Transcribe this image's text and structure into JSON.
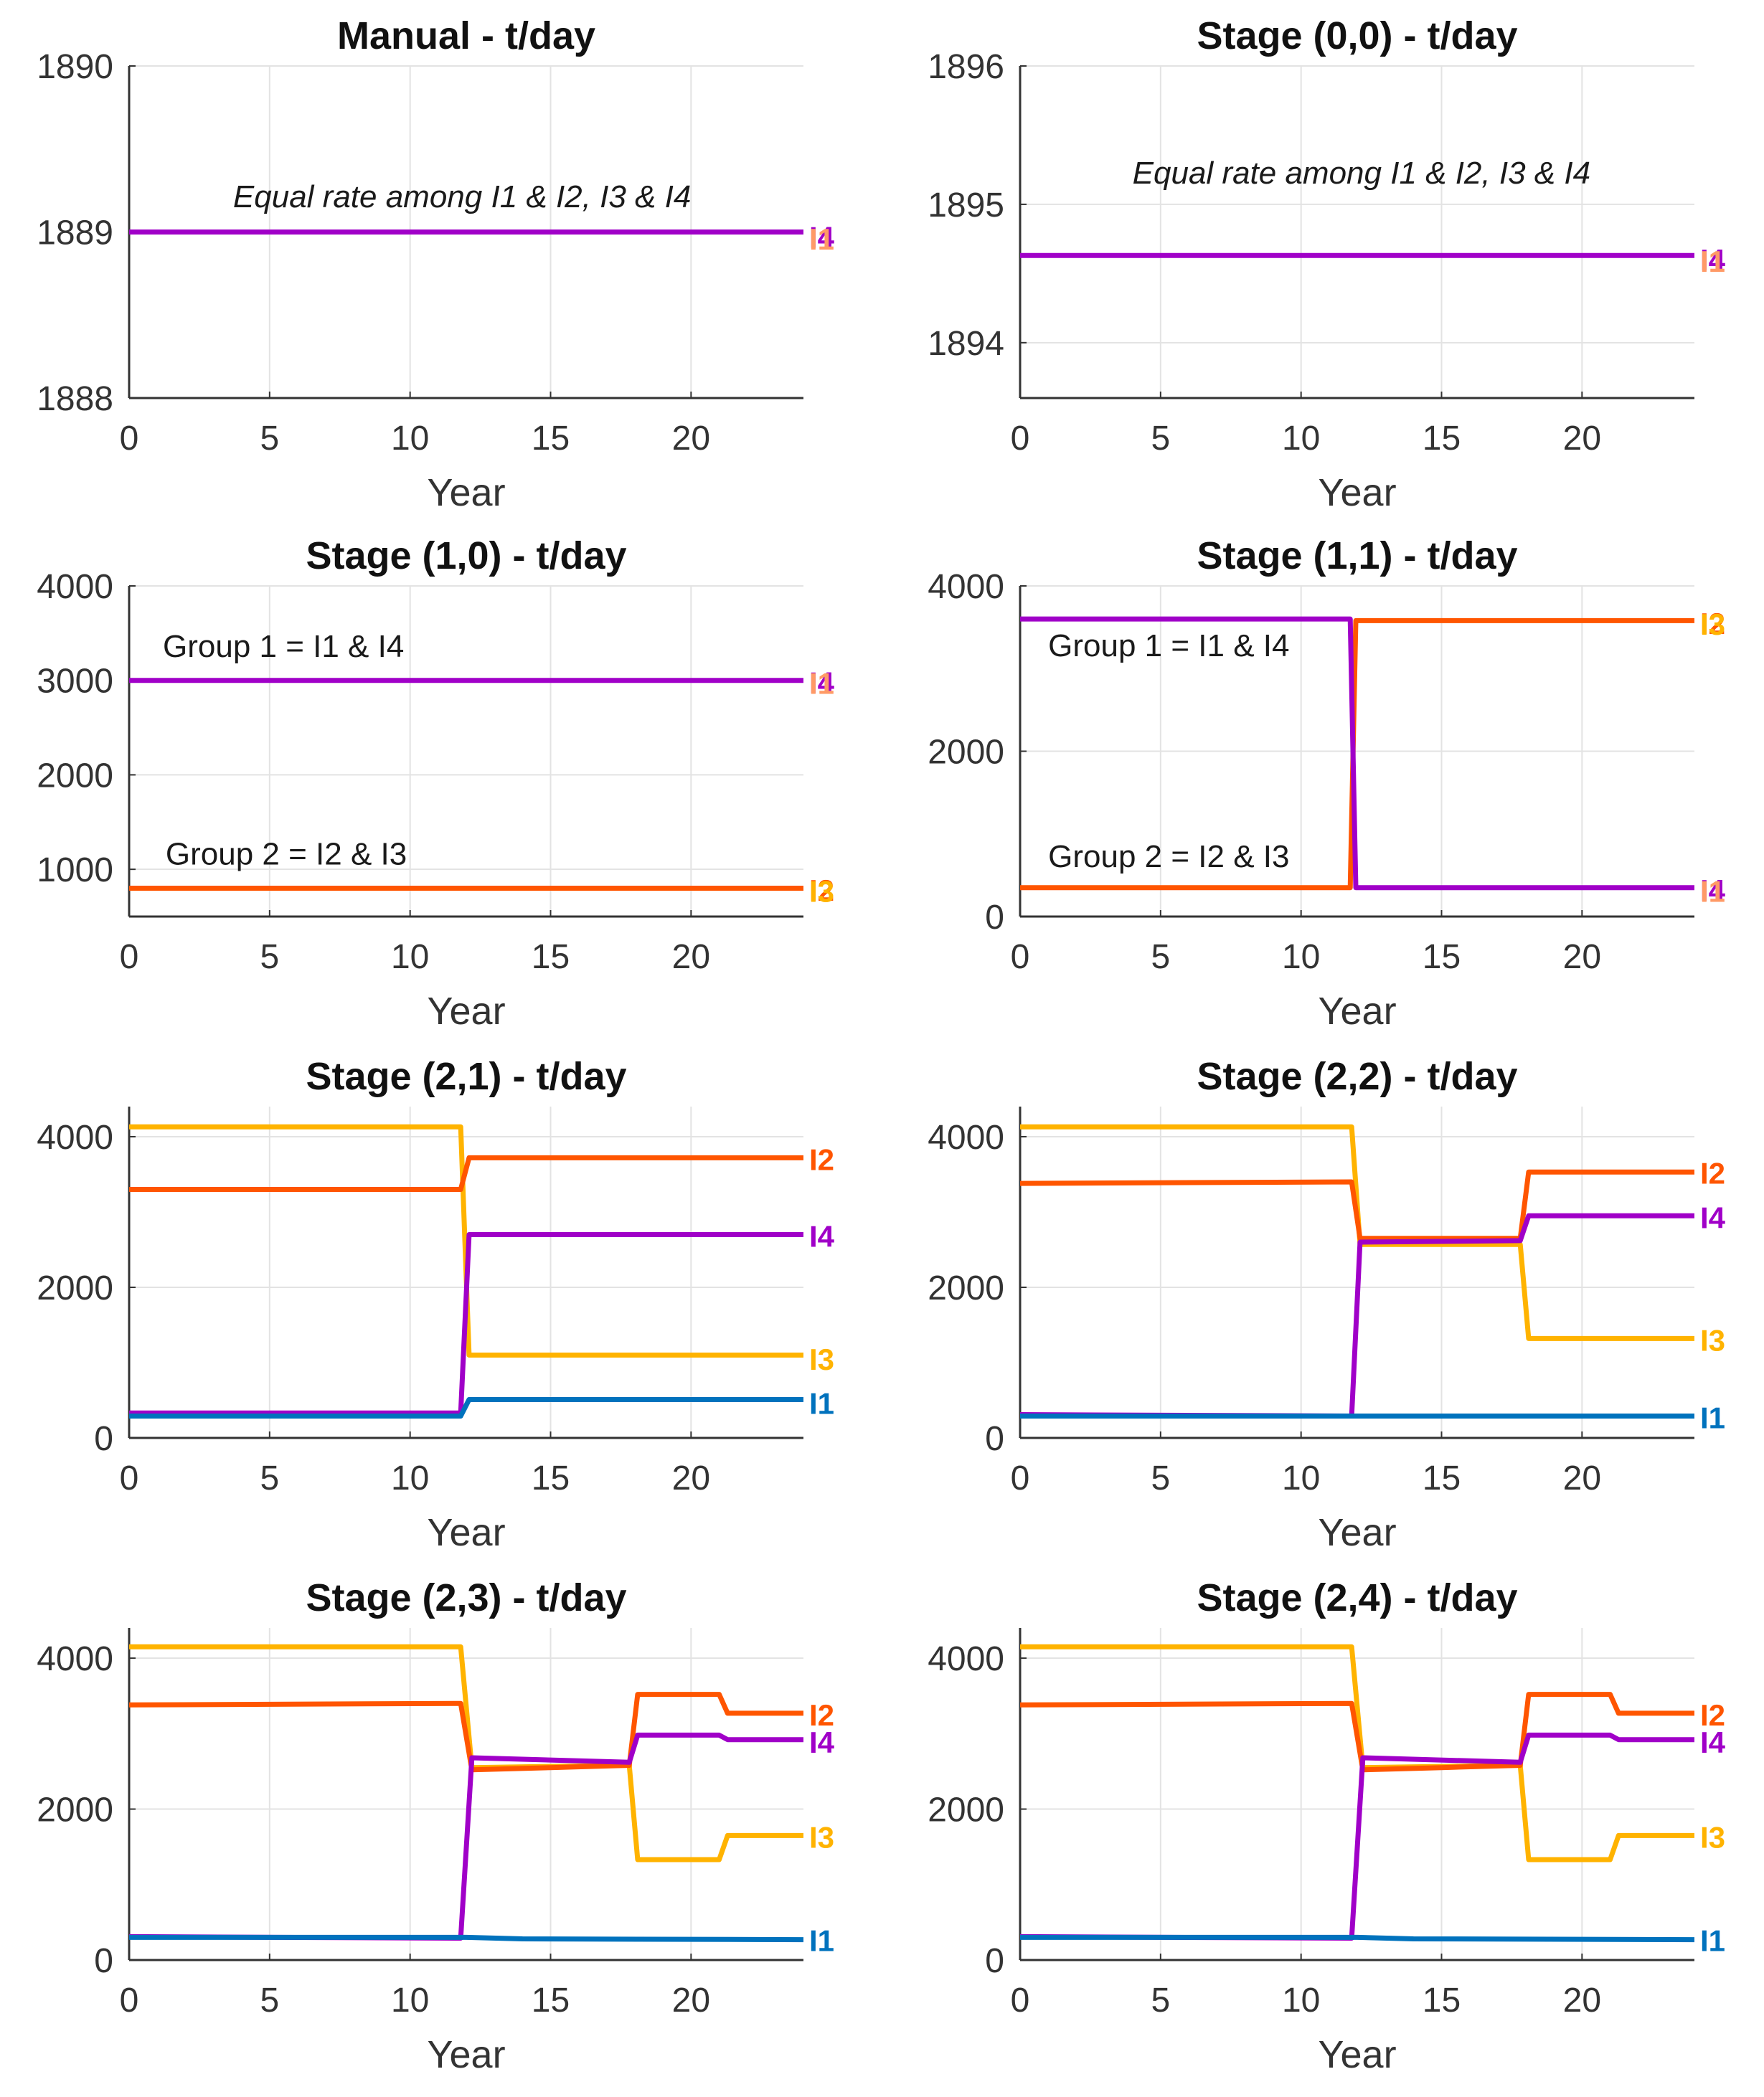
{
  "colors": {
    "I1": "#0072BD",
    "I2": "#FF5500",
    "I3": "#FFB300",
    "I4": "#A000C8",
    "I2_light": "#FF9A66",
    "I4_light": "#E04080"
  },
  "chart_data": [
    {
      "type": "line",
      "title": "Manual - t/day",
      "xlabel": "Year",
      "xlim": [
        0,
        24
      ],
      "xticks": [
        0,
        5,
        10,
        15,
        20
      ],
      "xtick_labels": [
        "0",
        "5",
        "10",
        "15",
        "20"
      ],
      "ylim": [
        1888,
        1890
      ],
      "yticks": [
        1888,
        1889,
        1890
      ],
      "ytick_labels": [
        "1888",
        "1889",
        "1890"
      ],
      "annotations": [
        {
          "text": "Equal rate among I1 & I2, I3 & I4",
          "x": 3.7,
          "y": 1889.15,
          "italic": true
        }
      ],
      "series": [
        {
          "name": "I4",
          "color": "I4",
          "points": [
            [
              0,
              1889
            ],
            [
              24,
              1889
            ]
          ]
        }
      ],
      "end_labels": [
        {
          "text": "I4",
          "color": "I4",
          "y": 1888.97
        },
        {
          "text": "I1",
          "color": "I2_light",
          "y": 1888.96
        }
      ]
    },
    {
      "type": "line",
      "title": "Stage (0,0) - t/day",
      "xlabel": "Year",
      "xlim": [
        0,
        24
      ],
      "xticks": [
        0,
        5,
        10,
        15,
        20
      ],
      "xtick_labels": [
        "0",
        "5",
        "10",
        "15",
        "20"
      ],
      "ylim": [
        1893.6,
        1896
      ],
      "yticks": [
        1894,
        1895,
        1896
      ],
      "ytick_labels": [
        "1894",
        "1895",
        "1896"
      ],
      "annotations": [
        {
          "text": "Equal rate among I1 & I2, I3 & I4",
          "x": 4,
          "y": 1895.15,
          "italic": true
        }
      ],
      "series": [
        {
          "name": "I4",
          "color": "I4",
          "points": [
            [
              0,
              1894.63
            ],
            [
              24,
              1894.63
            ]
          ]
        }
      ],
      "end_labels": [
        {
          "text": "I4",
          "color": "I4",
          "y": 1894.6
        },
        {
          "text": "I1",
          "color": "I2_light",
          "y": 1894.59
        }
      ]
    },
    {
      "type": "line",
      "title": "Stage (1,0) - t/day",
      "xlabel": "Year",
      "xlim": [
        0,
        24
      ],
      "xticks": [
        0,
        5,
        10,
        15,
        20
      ],
      "xtick_labels": [
        "0",
        "5",
        "10",
        "15",
        "20"
      ],
      "ylim": [
        500,
        4000
      ],
      "yticks": [
        1000,
        2000,
        3000,
        4000
      ],
      "ytick_labels": [
        "1000",
        "2000",
        "3000",
        "4000"
      ],
      "annotations": [
        {
          "text": "Group 1 = I1 & I4",
          "x": 1.2,
          "y": 3250
        },
        {
          "text": "Group 2 = I2 & I3",
          "x": 1.3,
          "y": 1050
        }
      ],
      "series": [
        {
          "name": "I4",
          "color": "I4",
          "points": [
            [
              0,
              3000
            ],
            [
              24,
              3000
            ]
          ]
        },
        {
          "name": "I2",
          "color": "I2",
          "points": [
            [
              0,
              800
            ],
            [
              24,
              800
            ]
          ]
        }
      ],
      "end_labels": [
        {
          "text": "I4",
          "color": "I4",
          "y": 2980
        },
        {
          "text": "I1",
          "color": "I2_light",
          "y": 2970
        },
        {
          "text": "I2",
          "color": "I2",
          "y": 780
        },
        {
          "text": "I3",
          "color": "I3",
          "y": 770
        }
      ]
    },
    {
      "type": "line",
      "title": "Stage (1,1) - t/day",
      "xlabel": "Year",
      "xlim": [
        0,
        24
      ],
      "xticks": [
        0,
        5,
        10,
        15,
        20
      ],
      "xtick_labels": [
        "0",
        "5",
        "10",
        "15",
        "20"
      ],
      "ylim": [
        0,
        4000
      ],
      "yticks": [
        0,
        2000,
        4000
      ],
      "ytick_labels": [
        "0",
        "2000",
        "4000"
      ],
      "annotations": [
        {
          "text": "Group 1 = I1 & I4",
          "x": 1,
          "y": 3150
        },
        {
          "text": "Group 2 = I2 & I3",
          "x": 1,
          "y": 600
        }
      ],
      "series": [
        {
          "name": "I2",
          "color": "I2",
          "points": [
            [
              0,
              350
            ],
            [
              11.75,
              350
            ],
            [
              11.95,
              3580
            ],
            [
              24,
              3580
            ]
          ]
        },
        {
          "name": "I4",
          "color": "I4",
          "points": [
            [
              0,
              3600
            ],
            [
              11.75,
              3600
            ],
            [
              11.95,
              350
            ],
            [
              24,
              350
            ]
          ]
        }
      ],
      "end_labels": [
        {
          "text": "I2",
          "color": "I2",
          "y": 3550
        },
        {
          "text": "I3",
          "color": "I3",
          "y": 3540
        },
        {
          "text": "I4",
          "color": "I4",
          "y": 320
        },
        {
          "text": "I1",
          "color": "I2_light",
          "y": 310
        }
      ]
    },
    {
      "type": "line",
      "title": "Stage (2,1) - t/day",
      "xlabel": "Year",
      "xlim": [
        0,
        24
      ],
      "xticks": [
        0,
        5,
        10,
        15,
        20
      ],
      "xtick_labels": [
        "0",
        "5",
        "10",
        "15",
        "20"
      ],
      "ylim": [
        0,
        4400
      ],
      "yticks": [
        0,
        2000,
        4000
      ],
      "ytick_labels": [
        "0",
        "2000",
        "4000"
      ],
      "series": [
        {
          "name": "I3",
          "color": "I3",
          "points": [
            [
              0,
              4130
            ],
            [
              11.8,
              4130
            ],
            [
              12.1,
              1100
            ],
            [
              24,
              1100
            ]
          ]
        },
        {
          "name": "I2",
          "color": "I2",
          "points": [
            [
              0,
              3300
            ],
            [
              11.8,
              3300
            ],
            [
              12.1,
              3720
            ],
            [
              24,
              3720
            ]
          ]
        },
        {
          "name": "I4",
          "color": "I4",
          "points": [
            [
              0,
              330
            ],
            [
              11.8,
              330
            ],
            [
              12.1,
              2700
            ],
            [
              24,
              2700
            ]
          ]
        },
        {
          "name": "I1",
          "color": "I1",
          "points": [
            [
              0,
              290
            ],
            [
              11.8,
              290
            ],
            [
              12.1,
              510
            ],
            [
              24,
              510
            ]
          ]
        }
      ],
      "end_labels": [
        {
          "text": "I2",
          "color": "I2",
          "y": 3700
        },
        {
          "text": "I4",
          "color": "I4",
          "y": 2680
        },
        {
          "text": "I3",
          "color": "I3",
          "y": 1050
        },
        {
          "text": "I1",
          "color": "I1",
          "y": 460
        }
      ]
    },
    {
      "type": "line",
      "title": "Stage (2,2) - t/day",
      "xlabel": "Year",
      "xlim": [
        0,
        24
      ],
      "xticks": [
        0,
        5,
        10,
        15,
        20
      ],
      "xtick_labels": [
        "0",
        "5",
        "10",
        "15",
        "20"
      ],
      "ylim": [
        0,
        4400
      ],
      "yticks": [
        0,
        2000,
        4000
      ],
      "ytick_labels": [
        "0",
        "2000",
        "4000"
      ],
      "series": [
        {
          "name": "I3",
          "color": "I3",
          "points": [
            [
              0,
              4130
            ],
            [
              11.8,
              4130
            ],
            [
              12.1,
              2570
            ],
            [
              17.8,
              2570
            ],
            [
              18.1,
              1320
            ],
            [
              24,
              1320
            ]
          ]
        },
        {
          "name": "I2",
          "color": "I2",
          "points": [
            [
              0,
              3380
            ],
            [
              11.8,
              3400
            ],
            [
              12.1,
              2650
            ],
            [
              17.8,
              2650
            ],
            [
              18.1,
              3530
            ],
            [
              24,
              3530
            ]
          ]
        },
        {
          "name": "I4",
          "color": "I4",
          "points": [
            [
              0,
              310
            ],
            [
              11.8,
              290
            ],
            [
              12.1,
              2600
            ],
            [
              17.8,
              2620
            ],
            [
              18.1,
              2950
            ],
            [
              24,
              2950
            ]
          ]
        },
        {
          "name": "I1",
          "color": "I1",
          "points": [
            [
              0,
              290
            ],
            [
              24,
              290
            ]
          ]
        }
      ],
      "end_labels": [
        {
          "text": "I2",
          "color": "I2",
          "y": 3520
        },
        {
          "text": "I4",
          "color": "I4",
          "y": 2930
        },
        {
          "text": "I3",
          "color": "I3",
          "y": 1300
        },
        {
          "text": "I1",
          "color": "I1",
          "y": 270
        }
      ]
    },
    {
      "type": "line",
      "title": "Stage (2,3) - t/day",
      "xlabel": "Year",
      "xlim": [
        0,
        24
      ],
      "xticks": [
        0,
        5,
        10,
        15,
        20
      ],
      "xtick_labels": [
        "0",
        "5",
        "10",
        "15",
        "20"
      ],
      "ylim": [
        0,
        4400
      ],
      "yticks": [
        0,
        2000,
        4000
      ],
      "ytick_labels": [
        "0",
        "2000",
        "4000"
      ],
      "series": [
        {
          "name": "I3",
          "color": "I3",
          "points": [
            [
              0,
              4150
            ],
            [
              11.8,
              4150
            ],
            [
              12.2,
              2550
            ],
            [
              17.8,
              2580
            ],
            [
              18.1,
              1330
            ],
            [
              21,
              1330
            ],
            [
              21.3,
              1650
            ],
            [
              24,
              1650
            ]
          ]
        },
        {
          "name": "I2",
          "color": "I2",
          "points": [
            [
              0,
              3380
            ],
            [
              11.8,
              3400
            ],
            [
              12.2,
              2520
            ],
            [
              15,
              2550
            ],
            [
              17.8,
              2580
            ],
            [
              18.1,
              3520
            ],
            [
              21,
              3520
            ],
            [
              21.3,
              3270
            ],
            [
              24,
              3270
            ]
          ]
        },
        {
          "name": "I4",
          "color": "I4",
          "points": [
            [
              0,
              310
            ],
            [
              11.8,
              290
            ],
            [
              12.2,
              2680
            ],
            [
              17.8,
              2620
            ],
            [
              18.1,
              2980
            ],
            [
              21,
              2980
            ],
            [
              21.3,
              2920
            ],
            [
              24,
              2920
            ]
          ]
        },
        {
          "name": "I1",
          "color": "I1",
          "points": [
            [
              0,
              300
            ],
            [
              12,
              300
            ],
            [
              14,
              280
            ],
            [
              24,
              270
            ]
          ]
        }
      ],
      "end_labels": [
        {
          "text": "I2",
          "color": "I2",
          "y": 3250
        },
        {
          "text": "I4",
          "color": "I4",
          "y": 2890
        },
        {
          "text": "I3",
          "color": "I3",
          "y": 1630
        },
        {
          "text": "I1",
          "color": "I1",
          "y": 260
        }
      ]
    },
    {
      "type": "line",
      "title": "Stage (2,4) - t/day",
      "xlabel": "Year",
      "xlim": [
        0,
        24
      ],
      "xticks": [
        0,
        5,
        10,
        15,
        20
      ],
      "xtick_labels": [
        "0",
        "5",
        "10",
        "15",
        "20"
      ],
      "ylim": [
        0,
        4400
      ],
      "yticks": [
        0,
        2000,
        4000
      ],
      "ytick_labels": [
        "0",
        "2000",
        "4000"
      ],
      "series": [
        {
          "name": "I3",
          "color": "I3",
          "points": [
            [
              0,
              4150
            ],
            [
              11.8,
              4150
            ],
            [
              12.2,
              2550
            ],
            [
              17.8,
              2580
            ],
            [
              18.1,
              1330
            ],
            [
              21,
              1330
            ],
            [
              21.3,
              1650
            ],
            [
              24,
              1650
            ]
          ]
        },
        {
          "name": "I2",
          "color": "I2",
          "points": [
            [
              0,
              3380
            ],
            [
              11.8,
              3400
            ],
            [
              12.2,
              2520
            ],
            [
              15,
              2550
            ],
            [
              17.8,
              2580
            ],
            [
              18.1,
              3520
            ],
            [
              21,
              3520
            ],
            [
              21.3,
              3270
            ],
            [
              24,
              3270
            ]
          ]
        },
        {
          "name": "I4",
          "color": "I4",
          "points": [
            [
              0,
              310
            ],
            [
              11.8,
              290
            ],
            [
              12.2,
              2680
            ],
            [
              17.8,
              2620
            ],
            [
              18.1,
              2980
            ],
            [
              21,
              2980
            ],
            [
              21.3,
              2920
            ],
            [
              24,
              2920
            ]
          ]
        },
        {
          "name": "I1",
          "color": "I1",
          "points": [
            [
              0,
              300
            ],
            [
              12,
              300
            ],
            [
              14,
              280
            ],
            [
              24,
              270
            ]
          ]
        }
      ],
      "end_labels": [
        {
          "text": "I2",
          "color": "I2",
          "y": 3250
        },
        {
          "text": "I4",
          "color": "I4",
          "y": 2890
        },
        {
          "text": "I3",
          "color": "I3",
          "y": 1630
        },
        {
          "text": "I1",
          "color": "I1",
          "y": 260
        }
      ]
    }
  ]
}
